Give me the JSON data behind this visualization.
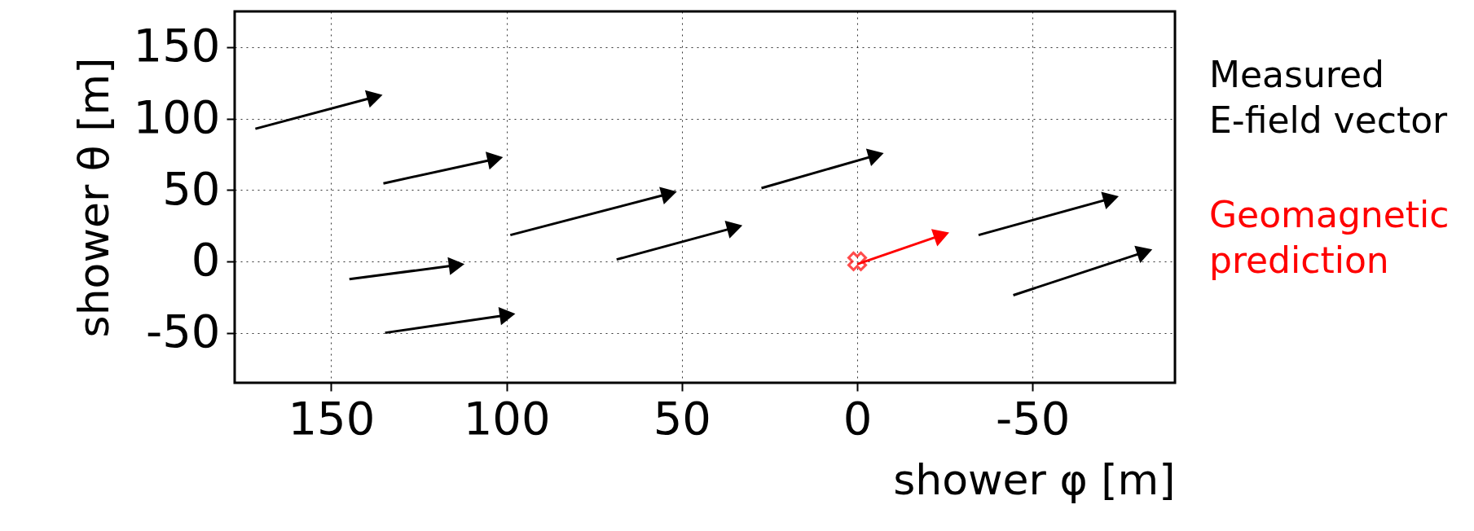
{
  "chart_data": {
    "type": "line",
    "xlabel": "shower φ [m]",
    "ylabel": "shower θ [m]",
    "xlim": [
      177.5,
      -90.6
    ],
    "ylim": [
      -85,
      175
    ],
    "xticks": [
      150,
      100,
      50,
      0,
      -50
    ],
    "yticks": [
      -50,
      0,
      50,
      100,
      150
    ],
    "grid": true,
    "line_style": "solid",
    "legend": "right",
    "series": [
      {
        "name": "Measured E-field vector",
        "color": "#000000",
        "x": [
          171.6,
          137.5,
          null,
          135.1,
          103.2,
          null,
          98.9,
          53.6,
          null,
          27.3,
          -5.4,
          null,
          144.8,
          114.2,
          null,
          134.6,
          99.7,
          null,
          68.6,
          34.9,
          null,
          -34.6,
          -72.4,
          null,
          -44.5,
          -82.0
        ],
        "values": [
          92.8,
          115.1,
          null,
          54.6,
          71.7,
          null,
          18.4,
          47.4,
          null,
          51.3,
          74.3,
          null,
          -12.5,
          -2.6,
          null,
          -50.0,
          -37.5,
          null,
          1.3,
          23.7,
          null,
          18.4,
          44.1,
          null,
          -23.7,
          6.6
        ]
      },
      {
        "name": "Geomagnetic prediction",
        "color": "#ff0000",
        "x": [
          0,
          -24.1
        ],
        "values": [
          -2.0,
          18.4
        ]
      },
      {
        "color": "#ff0000",
        "type": "scatter",
        "marker": "cross",
        "x": [
          0
        ],
        "values": [
          0
        ]
      }
    ]
  }
}
